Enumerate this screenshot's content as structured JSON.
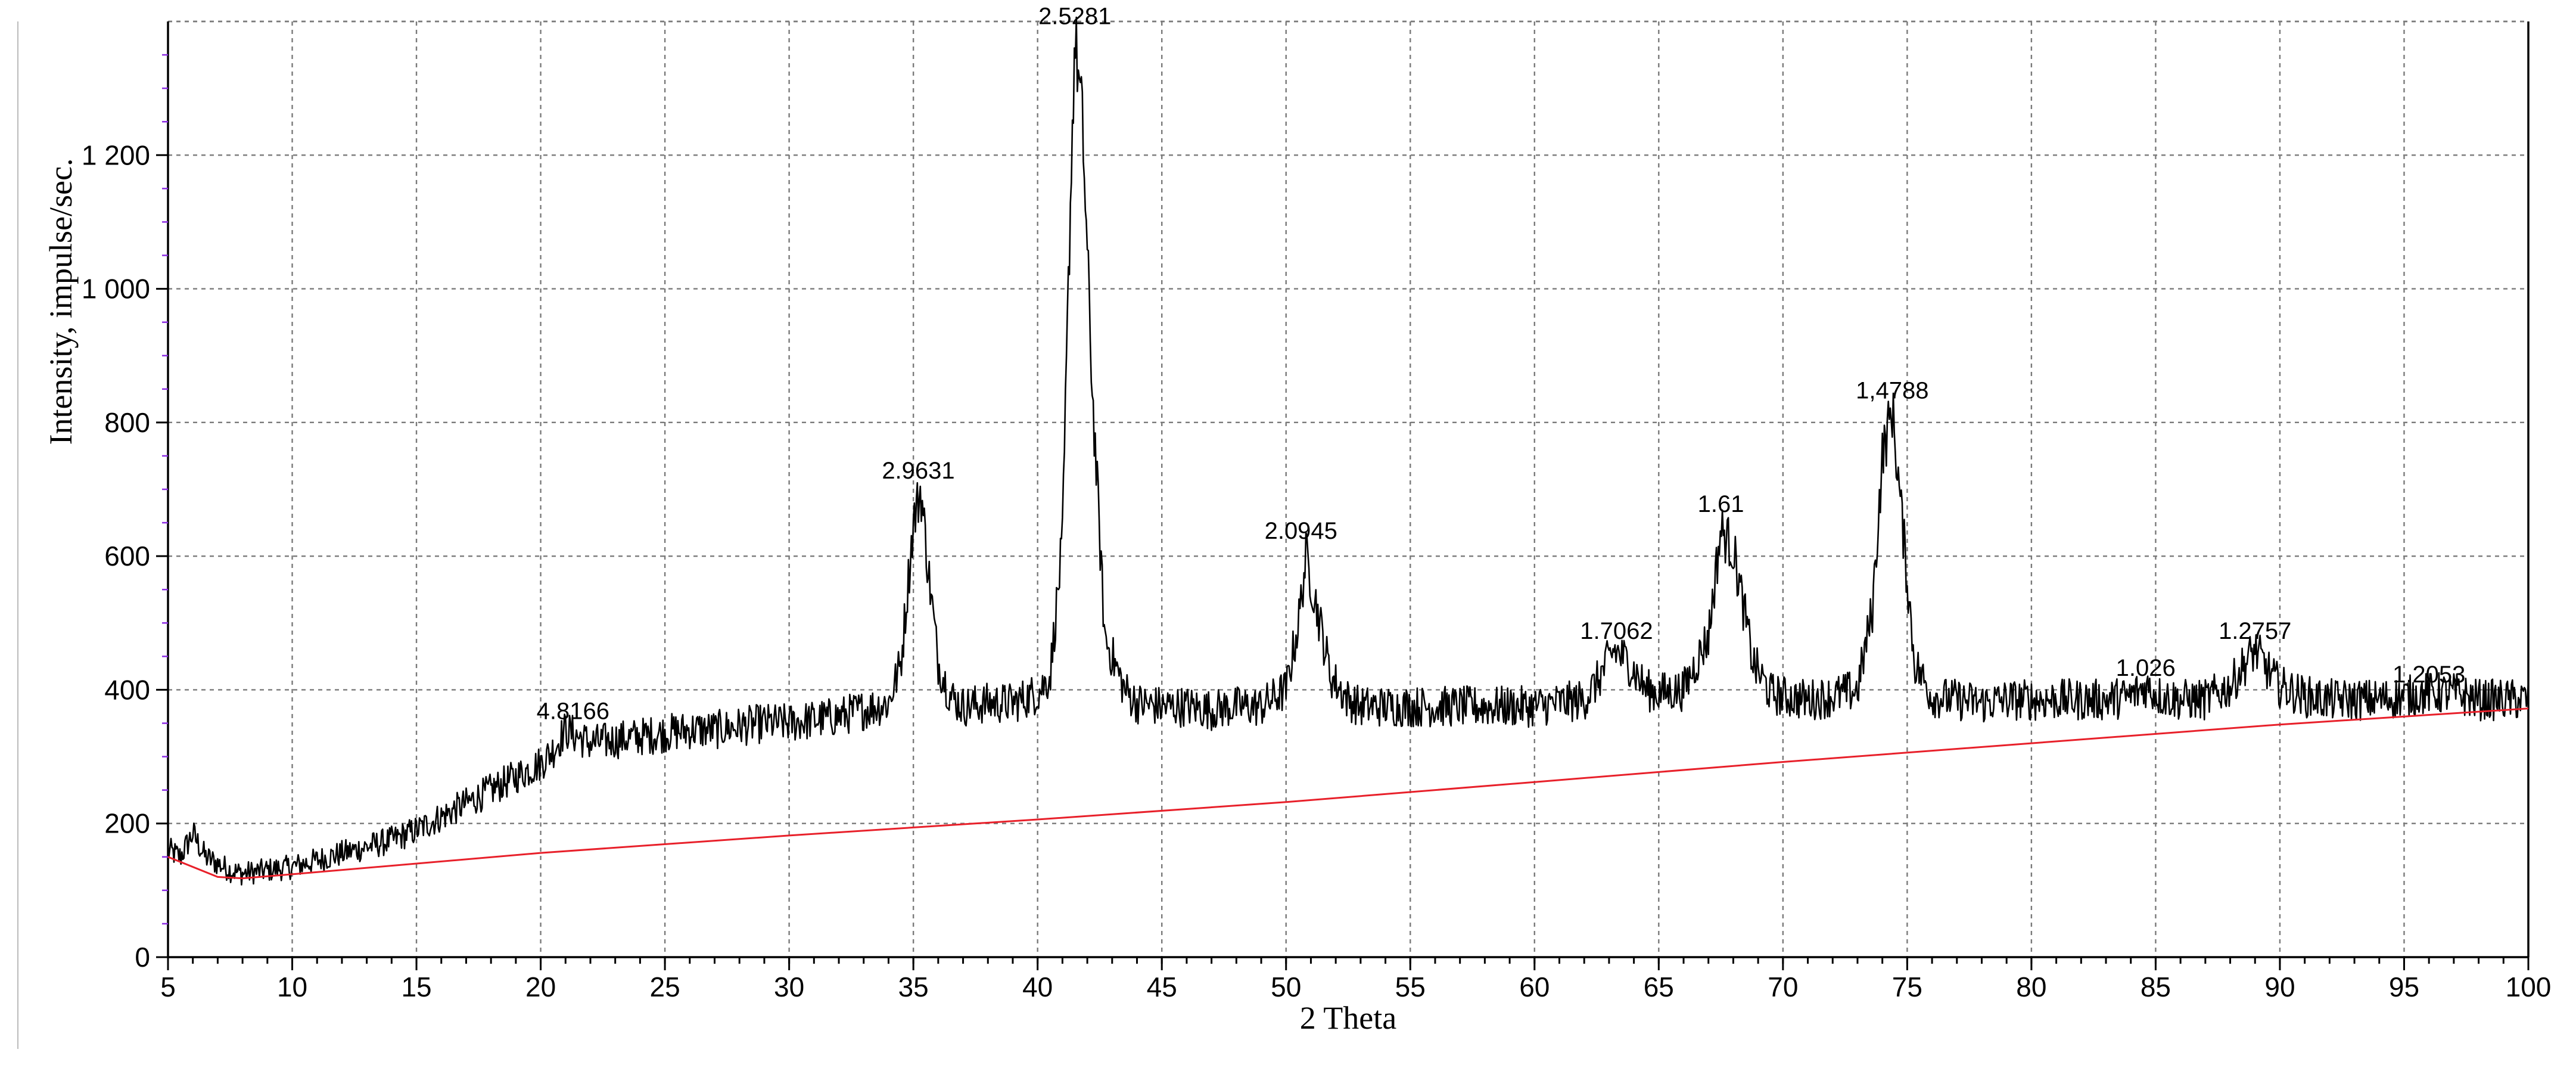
{
  "chart_data": {
    "type": "line",
    "xlabel": "2 Theta",
    "ylabel": "Intensity, impulse/sec.",
    "xlim": [
      5,
      100
    ],
    "ylim": [
      0,
      1400
    ],
    "x_ticks": [
      "5",
      "10",
      "15",
      "20",
      "25",
      "30",
      "35",
      "40",
      "45",
      "50",
      "55",
      "60",
      "65",
      "70",
      "75",
      "80",
      "85",
      "90",
      "95",
      "100"
    ],
    "y_ticks": [
      "0",
      "200",
      "400",
      "600",
      "800",
      "1 000",
      "1 200"
    ],
    "y_tick_values": [
      0,
      200,
      400,
      600,
      800,
      1000,
      1200
    ],
    "grid": true,
    "colors": {
      "diffractogram": "#000000",
      "baseline": "#e8202a"
    },
    "series": [
      {
        "role": "diffractogram",
        "x": [
          5,
          5.5,
          6,
          6.5,
          7,
          7.5,
          8,
          9,
          10,
          11,
          12,
          13,
          14,
          15,
          16,
          17,
          18,
          19,
          20,
          20.5,
          21,
          21.5,
          22,
          23,
          24,
          25,
          26,
          27,
          28,
          29,
          30,
          31,
          32,
          33,
          34,
          34.5,
          35,
          35.3,
          35.6,
          36,
          36.5,
          37,
          38,
          39,
          40,
          40.5,
          41,
          41.3,
          41.5,
          41.8,
          42.2,
          42.7,
          43.5,
          44,
          45,
          46,
          47,
          48,
          49,
          50,
          50.5,
          50.8,
          51.2,
          51.8,
          52.5,
          53,
          54,
          55,
          56,
          57,
          58,
          59,
          60,
          61,
          62,
          62.5,
          63.2,
          63.8,
          64.5,
          65,
          66,
          67,
          67.5,
          68,
          68.8,
          69.5,
          70,
          71,
          72,
          73,
          73.6,
          74,
          74.4,
          74.8,
          75.3,
          76,
          77,
          78,
          79,
          80,
          81,
          82,
          83,
          84,
          84.6,
          85.2,
          86,
          87,
          88,
          88.6,
          89,
          89.5,
          90,
          91,
          92,
          93,
          94,
          95,
          96,
          97,
          98,
          99,
          100
        ],
        "y": [
          160,
          150,
          185,
          150,
          140,
          130,
          125,
          130,
          135,
          145,
          155,
          165,
          175,
          190,
          210,
          230,
          250,
          270,
          290,
          310,
          340,
          330,
          320,
          325,
          330,
          335,
          340,
          340,
          345,
          350,
          350,
          355,
          360,
          370,
          380,
          440,
          650,
          700,
          580,
          440,
          390,
          375,
          380,
          380,
          395,
          420,
          620,
          1100,
          1380,
          1250,
          850,
          480,
          400,
          380,
          375,
          375,
          370,
          375,
          375,
          400,
          500,
          600,
          530,
          420,
          385,
          375,
          375,
          375,
          375,
          375,
          375,
          375,
          375,
          380,
          385,
          410,
          460,
          440,
          400,
          395,
          400,
          480,
          640,
          610,
          440,
          395,
          390,
          385,
          390,
          400,
          520,
          750,
          820,
          650,
          440,
          390,
          385,
          380,
          385,
          385,
          385,
          385,
          385,
          390,
          405,
          390,
          385,
          385,
          405,
          440,
          460,
          430,
          405,
          390,
          385,
          385,
          385,
          390,
          395,
          395,
          385,
          385,
          385
        ]
      },
      {
        "role": "baseline",
        "x": [
          5,
          7,
          8,
          10,
          20,
          30,
          40,
          50,
          60,
          70,
          80,
          90,
          100
        ],
        "y": [
          150,
          120,
          118,
          124,
          156,
          182,
          206,
          232,
          262,
          292,
          320,
          348,
          372
        ]
      }
    ],
    "annotations": [
      {
        "text": "4.8166",
        "x": 21.3,
        "y": 340
      },
      {
        "text": "2.9631",
        "x": 35.2,
        "y": 700
      },
      {
        "text": "2.5281",
        "x": 41.5,
        "y": 1380
      },
      {
        "text": "2.0945",
        "x": 50.6,
        "y": 610
      },
      {
        "text": "1.7062",
        "x": 63.3,
        "y": 460
      },
      {
        "text": "1.61",
        "x": 67.5,
        "y": 650
      },
      {
        "text": "1,4788",
        "x": 74.4,
        "y": 820
      },
      {
        "text": "1.026",
        "x": 84.6,
        "y": 405
      },
      {
        "text": "1.2757",
        "x": 89.0,
        "y": 460
      },
      {
        "text": "1.2053",
        "x": 96.0,
        "y": 395
      }
    ]
  }
}
